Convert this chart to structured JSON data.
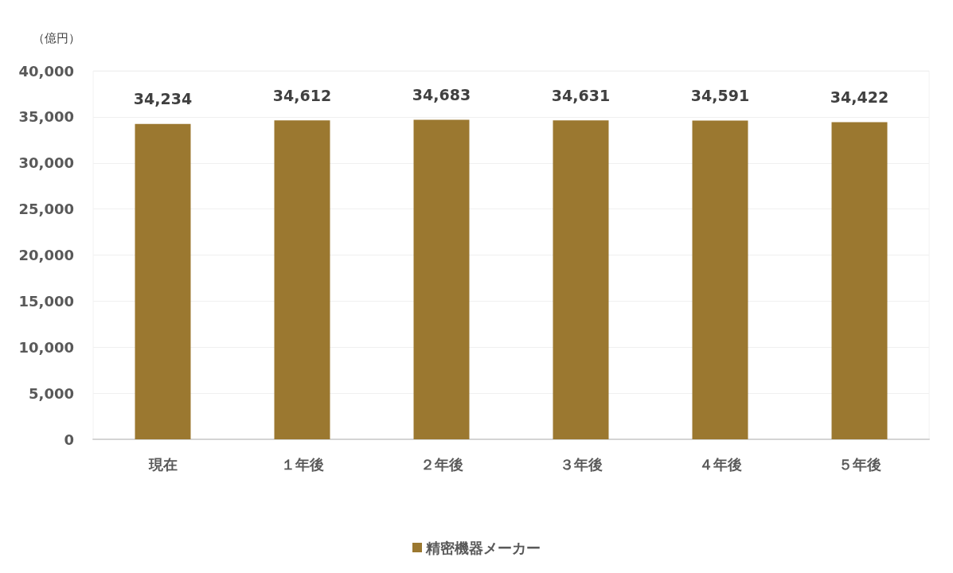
{
  "chart_data": {
    "type": "bar",
    "ylabel": "（億円）",
    "categories": [
      "現在",
      "１年後",
      "２年後",
      "３年後",
      "４年後",
      "５年後"
    ],
    "series": [
      {
        "name": "精密機器メーカー",
        "color": "#9b7830",
        "values": [
          34234,
          34612,
          34683,
          34631,
          34591,
          34422
        ],
        "value_labels": [
          "34,234",
          "34,612",
          "34,683",
          "34,631",
          "34,591",
          "34,422"
        ]
      }
    ],
    "ylim": [
      0,
      40000
    ],
    "yticks": [
      0,
      {
        "value": 5000,
        "label": "5,000"
      },
      {
        "value": 10000,
        "label": "10,000"
      },
      {
        "value": 15000,
        "label": "15,000"
      },
      {
        "value": 20000,
        "label": "20,000"
      },
      {
        "value": 25000,
        "label": "25,000"
      },
      {
        "value": 30000,
        "label": "30,000"
      },
      {
        "value": 35000,
        "label": "35,000"
      },
      {
        "value": 40000,
        "label": "40,000"
      }
    ],
    "grid": "y",
    "legend": "bottom"
  }
}
